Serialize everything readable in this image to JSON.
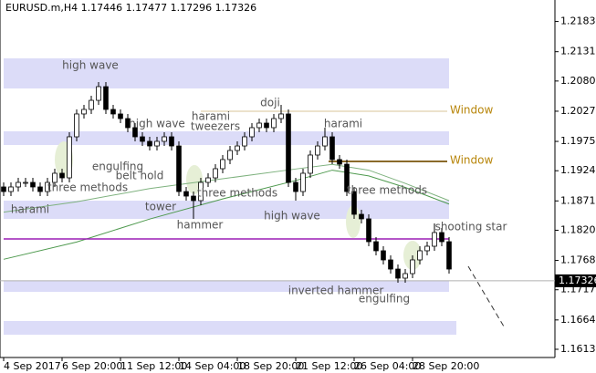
{
  "chart_data": {
    "type": "candlestick",
    "header": "EURUSD.m,H4  1.17446 1.17477 1.17296 1.17326",
    "x": [
      0,
      2,
      4,
      6,
      8,
      10,
      12,
      14,
      16,
      18,
      20,
      22,
      24,
      26,
      28,
      30,
      32,
      34,
      36,
      38,
      40,
      42,
      44,
      46,
      48,
      50,
      52,
      54,
      56,
      58,
      60,
      62,
      64,
      66,
      68,
      70,
      72,
      74,
      76,
      78,
      80,
      82,
      84,
      86,
      88,
      90,
      92,
      94,
      96,
      98,
      100,
      102,
      104,
      106,
      108,
      110,
      112,
      114,
      116,
      118,
      120,
      122
    ],
    "open": [
      1.18958,
      1.18878,
      1.18958,
      1.19037,
      1.19037,
      1.18958,
      1.18878,
      1.19037,
      1.19196,
      1.19116,
      1.1983,
      1.20227,
      1.20306,
      1.20464,
      1.20702,
      1.20306,
      1.20227,
      1.20147,
      1.19989,
      1.1983,
      1.19751,
      1.19671,
      1.19751,
      1.1983,
      1.19671,
      1.18878,
      1.18799,
      1.1872,
      1.19037,
      1.19116,
      1.19275,
      1.19434,
      1.19592,
      1.19671,
      1.1983,
      1.19989,
      1.20068,
      1.19989,
      1.20147,
      1.20227,
      1.19037,
      1.18878,
      1.19196,
      1.19513,
      1.19671,
      1.1983,
      1.19434,
      1.19354,
      1.18878,
      1.18482,
      1.18403,
      1.18006,
      1.17848,
      1.17689,
      1.1753,
      1.17372,
      1.17451,
      1.17689,
      1.17848,
      1.17927,
      1.18165,
      1.18006
    ],
    "high": [
      1.19037,
      1.19037,
      1.19116,
      1.19116,
      1.19116,
      1.19037,
      1.19116,
      1.19275,
      1.19275,
      1.19909,
      1.20306,
      1.20385,
      1.20544,
      1.20782,
      1.20782,
      1.20385,
      1.20306,
      1.20227,
      1.20068,
      1.19909,
      1.1983,
      1.1983,
      1.19909,
      1.19909,
      1.19751,
      1.18958,
      1.18878,
      1.19116,
      1.19196,
      1.19354,
      1.19513,
      1.19671,
      1.19751,
      1.19909,
      1.20068,
      1.20147,
      1.20147,
      1.20227,
      1.20385,
      1.20306,
      1.19116,
      1.19275,
      1.19592,
      1.19751,
      1.19989,
      1.19909,
      1.19513,
      1.19434,
      1.18958,
      1.18561,
      1.18482,
      1.18085,
      1.17927,
      1.17768,
      1.1761,
      1.1753,
      1.17768,
      1.17927,
      1.18006,
      1.18323,
      1.18244,
      1.18085
    ],
    "low": [
      1.18799,
      1.18799,
      1.18878,
      1.18958,
      1.18878,
      1.18799,
      1.18799,
      1.18958,
      1.19037,
      1.19037,
      1.19751,
      1.20147,
      1.20227,
      1.20385,
      1.20227,
      1.20147,
      1.20068,
      1.19909,
      1.19751,
      1.19671,
      1.19592,
      1.19592,
      1.19671,
      1.19592,
      1.18799,
      1.1872,
      1.18403,
      1.18641,
      1.18958,
      1.19037,
      1.19196,
      1.19354,
      1.19513,
      1.19592,
      1.19751,
      1.19909,
      1.19909,
      1.19909,
      1.20068,
      1.18958,
      1.1872,
      1.18799,
      1.19116,
      1.19434,
      1.19592,
      1.19354,
      1.19275,
      1.18799,
      1.18403,
      1.18323,
      1.17927,
      1.17768,
      1.1761,
      1.17451,
      1.17292,
      1.17292,
      1.17372,
      1.1761,
      1.17768,
      1.17848,
      1.17927,
      1.17451
    ],
    "close": [
      1.18878,
      1.18958,
      1.19037,
      1.19037,
      1.18958,
      1.18878,
      1.19037,
      1.19196,
      1.19116,
      1.1983,
      1.20227,
      1.20306,
      1.20464,
      1.20702,
      1.20306,
      1.20227,
      1.20147,
      1.19989,
      1.1983,
      1.19751,
      1.19671,
      1.19751,
      1.1983,
      1.19671,
      1.18878,
      1.18799,
      1.1872,
      1.19037,
      1.19116,
      1.19275,
      1.19434,
      1.19592,
      1.19671,
      1.1983,
      1.19989,
      1.20068,
      1.19989,
      1.20147,
      1.20227,
      1.19037,
      1.18878,
      1.19196,
      1.19513,
      1.19671,
      1.1983,
      1.19434,
      1.19354,
      1.18878,
      1.18482,
      1.18403,
      1.18006,
      1.17848,
      1.17689,
      1.1753,
      1.17372,
      1.17451,
      1.17689,
      1.17848,
      1.17927,
      1.18165,
      1.18006,
      1.1753
    ],
    "up_color": "#ffffff",
    "down_color": "#000000",
    "xlim": [
      -1,
      151
    ],
    "xticks": [
      {
        "value": 0,
        "label": "4 Sep 2017"
      },
      {
        "value": 16,
        "label": "6 Sep 20:00"
      },
      {
        "value": 32,
        "label": "11 Sep 12:00"
      },
      {
        "value": 48,
        "label": "14 Sep 04:00"
      },
      {
        "value": 64,
        "label": "18 Sep 20:00"
      },
      {
        "value": 80,
        "label": "21 Sep 12:00"
      },
      {
        "value": 96,
        "label": "26 Sep 04:00"
      },
      {
        "value": 112,
        "label": "28 Sep 20:00"
      }
    ],
    "ylim": [
      1.15992,
      1.22209
    ],
    "yticks": [
      1.21835,
      1.2131,
      1.208,
      1.20275,
      1.1975,
      1.1924,
      1.18715,
      1.18205,
      1.1768,
      1.1717,
      1.16645,
      1.16135
    ],
    "ytick_labels": [
      "1.21835",
      "1.21310",
      "1.20800",
      "1.20275",
      "1.19750",
      "1.19240",
      "1.18715",
      "1.18205",
      "1.17680",
      "1.17170",
      "1.16645",
      "1.16135"
    ],
    "moving_averages": [
      {
        "color": "#7fb27f",
        "x": [
          0,
          20,
          40,
          60,
          80,
          90,
          100,
          110,
          122
        ],
        "values": [
          1.1852,
          1.187,
          1.1893,
          1.191,
          1.1927,
          1.1935,
          1.1925,
          1.1902,
          1.1872
        ]
      },
      {
        "color": "#4f9a4f",
        "x": [
          0,
          20,
          40,
          60,
          80,
          90,
          100,
          110,
          122
        ],
        "values": [
          1.177,
          1.18,
          1.184,
          1.1875,
          1.1907,
          1.1925,
          1.1915,
          1.1895,
          1.1866
        ]
      }
    ],
    "zones": [
      [
        1.21194,
        1.20671
      ],
      [
        1.19925,
        1.19687
      ],
      [
        1.1872,
        1.18403
      ],
      [
        1.17324,
        1.17134
      ],
      [
        1.16626,
        1.16388
      ]
    ],
    "zone_color": "#dcdcf8",
    "level_line": {
      "value": 1.18054,
      "color": "#9b1fb5"
    },
    "windows": [
      {
        "name": "Window",
        "value": 1.20274
      },
      {
        "name": "Window",
        "value": 1.19402
      }
    ],
    "current_price": 1.17326,
    "annotations": [
      "high wave",
      "high wave",
      "harami",
      "tweezers",
      "doji",
      "harami",
      "engulfing",
      "belt hold",
      "three methods",
      "harami",
      "tower",
      "hammer",
      "three methods",
      "high wave",
      "three methods",
      "shooting star",
      "inverted hammer",
      "engulfing"
    ]
  }
}
